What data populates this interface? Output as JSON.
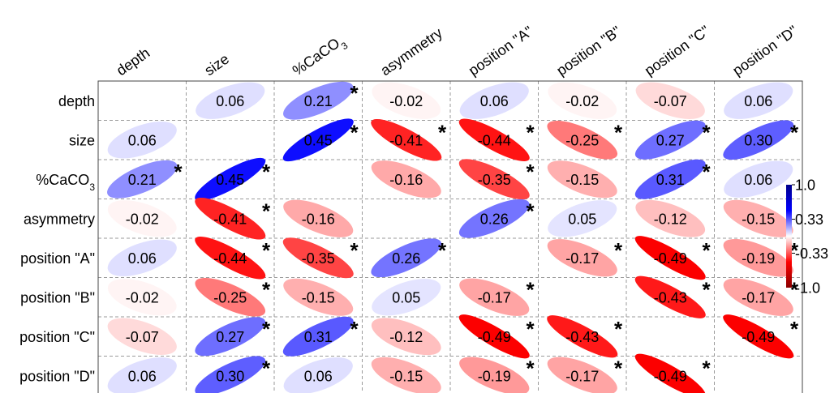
{
  "chart_data": {
    "type": "heatmap",
    "variables": [
      "depth",
      "size",
      "%CaCO3",
      "asymmetry",
      "position \"A\"",
      "position \"B\"",
      "position \"C\"",
      "position \"D\""
    ],
    "matrix": [
      [
        null,
        0.06,
        0.21,
        -0.02,
        0.06,
        -0.02,
        -0.07,
        0.06
      ],
      [
        0.06,
        null,
        0.45,
        -0.41,
        -0.44,
        -0.25,
        0.27,
        0.3
      ],
      [
        0.21,
        0.45,
        null,
        -0.16,
        -0.35,
        -0.15,
        0.31,
        0.06
      ],
      [
        -0.02,
        -0.41,
        -0.16,
        null,
        0.26,
        0.05,
        -0.12,
        -0.15
      ],
      [
        0.06,
        -0.44,
        -0.35,
        0.26,
        null,
        -0.17,
        -0.49,
        -0.19
      ],
      [
        -0.02,
        -0.25,
        -0.15,
        0.05,
        -0.17,
        null,
        -0.43,
        -0.17
      ],
      [
        -0.07,
        0.27,
        0.31,
        -0.12,
        -0.49,
        -0.43,
        null,
        -0.49
      ],
      [
        0.06,
        0.3,
        0.06,
        -0.15,
        -0.19,
        -0.17,
        -0.49,
        null
      ]
    ],
    "labels": [
      [
        null,
        "0.06",
        "0.21",
        "-0.02",
        "0.06",
        "-0.02",
        "-0.07",
        "0.06"
      ],
      [
        "0.06",
        null,
        "0.45",
        "-0.41",
        "-0.44",
        "-0.25",
        "0.27",
        "0.30"
      ],
      [
        "0.21",
        "0.45",
        null,
        "-0.16",
        "-0.35",
        "-0.15",
        "0.31",
        "0.06"
      ],
      [
        "-0.02",
        "-0.41",
        "-0.16",
        null,
        "0.26",
        "0.05",
        "-0.12",
        "-0.15"
      ],
      [
        "0.06",
        "-0.44",
        "-0.35",
        "0.26",
        null,
        "-0.17",
        "-0.49",
        "-0.19"
      ],
      [
        "-0.02",
        "-0.25",
        "-0.15",
        "0.05",
        "-0.17",
        null,
        "-0.43",
        "-0.17"
      ],
      [
        "-0.07",
        "0.27",
        "0.31",
        "-0.12",
        "-0.49",
        "-0.43",
        null,
        "-0.49"
      ],
      [
        "0.06",
        "0.30",
        "0.06",
        "-0.15",
        "-0.19",
        "-0.17",
        "-0.49",
        null
      ]
    ],
    "significant": [
      [
        false,
        false,
        true,
        false,
        false,
        false,
        false,
        false
      ],
      [
        false,
        false,
        true,
        true,
        true,
        true,
        true,
        true
      ],
      [
        true,
        true,
        false,
        false,
        true,
        false,
        true,
        false
      ],
      [
        false,
        true,
        false,
        false,
        true,
        false,
        false,
        false
      ],
      [
        false,
        true,
        true,
        true,
        false,
        true,
        true,
        true
      ],
      [
        false,
        true,
        false,
        false,
        true,
        false,
        true,
        true
      ],
      [
        false,
        true,
        true,
        false,
        true,
        true,
        false,
        true
      ],
      [
        false,
        true,
        false,
        false,
        true,
        true,
        true,
        false
      ]
    ],
    "significance_marker": "*",
    "colorbar": {
      "ticks": [
        "1.0",
        "0.33",
        "-0.33",
        "-1.0"
      ],
      "range": [
        -1.0,
        1.0
      ],
      "colors": [
        "#8b0000",
        "#ff0000",
        "#ffffff",
        "#0000ff",
        "#00008b"
      ]
    },
    "grid": true,
    "legend_position": "right"
  }
}
